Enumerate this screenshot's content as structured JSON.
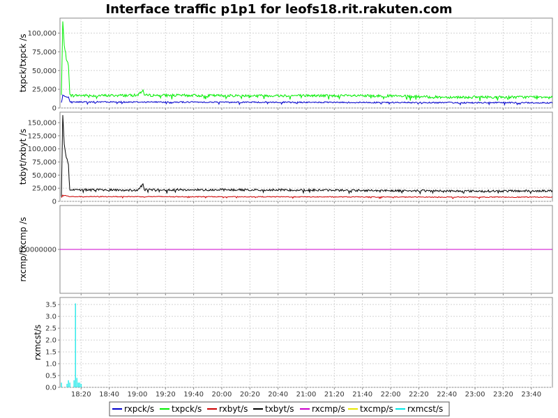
{
  "chart_data": {
    "type": "line",
    "title": "Interface traffic p1p1 for leofs18.rit.rakuten.com",
    "x_ticks": [
      "18:20",
      "18:40",
      "19:00",
      "19:20",
      "19:40",
      "20:00",
      "20:20",
      "20:40",
      "21:00",
      "21:20",
      "21:40",
      "22:00",
      "22:20",
      "22:40",
      "23:00",
      "23:20",
      "23:40"
    ],
    "x_range": [
      "18:05",
      "23:55"
    ],
    "legend": {
      "placement": "bottom",
      "items": [
        {
          "name": "rxpck/s",
          "color": "#0000cc"
        },
        {
          "name": "txpck/s",
          "color": "#00ee00"
        },
        {
          "name": "rxbyt/s",
          "color": "#cc0000"
        },
        {
          "name": "txbyt/s",
          "color": "#000000"
        },
        {
          "name": "rxcmp/s",
          "color": "#cc00cc"
        },
        {
          "name": "txcmp/s",
          "color": "#e6e600"
        },
        {
          "name": "rxmcst/s",
          "color": "#00e6e6"
        }
      ]
    },
    "panels": [
      {
        "ylabel": "txpck/txpck /s",
        "ylim": [
          0,
          120000
        ],
        "y_ticks": [
          0,
          25000,
          50000,
          75000,
          100000
        ],
        "y_tick_labels": [
          "0",
          "25,000",
          "50,000",
          "75,000",
          "100,000"
        ],
        "series": [
          {
            "name": "txpck/s",
            "color": "#00ee00",
            "points": [
              [
                "18:06",
                17000
              ],
              [
                "18:07",
                115000
              ],
              [
                "18:08",
                85000
              ],
              [
                "18:09",
                72000
              ],
              [
                "18:10",
                62000
              ],
              [
                "18:11",
                58000
              ],
              [
                "18:12",
                17000
              ],
              [
                "18:30",
                16500
              ],
              [
                "19:00",
                17000
              ],
              [
                "19:04",
                24000
              ],
              [
                "19:05",
                17000
              ],
              [
                "20:00",
                16500
              ],
              [
                "21:00",
                16500
              ],
              [
                "22:00",
                16000
              ],
              [
                "22:30",
                14500
              ],
              [
                "23:00",
                14500
              ],
              [
                "23:30",
                14500
              ],
              [
                "23:55",
                15000
              ]
            ],
            "noise": 3500
          },
          {
            "name": "rxpck/s",
            "color": "#0000cc",
            "points": [
              [
                "18:06",
                7000
              ],
              [
                "18:07",
                17000
              ],
              [
                "18:09",
                15000
              ],
              [
                "18:11",
                14000
              ],
              [
                "18:12",
                8000
              ],
              [
                "19:00",
                8000
              ],
              [
                "20:00",
                7800
              ],
              [
                "21:00",
                7500
              ],
              [
                "22:00",
                7300
              ],
              [
                "23:00",
                7000
              ],
              [
                "23:55",
                7000
              ]
            ],
            "noise": 1800
          }
        ]
      },
      {
        "ylabel": "txbyt/rxbyt /s",
        "ylim": [
          0,
          170000
        ],
        "y_ticks": [
          0,
          25000,
          50000,
          75000,
          100000,
          125000,
          150000
        ],
        "y_tick_labels": [
          "0",
          "25,000",
          "50,000",
          "75,000",
          "100,000",
          "125,000",
          "150,000"
        ],
        "series": [
          {
            "name": "txbyt/s",
            "color": "#000000",
            "points": [
              [
                "18:06",
                10000
              ],
              [
                "18:07",
                165000
              ],
              [
                "18:08",
                110000
              ],
              [
                "18:09",
                90000
              ],
              [
                "18:10",
                80000
              ],
              [
                "18:11",
                72000
              ],
              [
                "18:12",
                22000
              ],
              [
                "18:30",
                22000
              ],
              [
                "19:00",
                21000
              ],
              [
                "19:04",
                32000
              ],
              [
                "19:05",
                22000
              ],
              [
                "20:00",
                22000
              ],
              [
                "21:00",
                21500
              ],
              [
                "22:00",
                20500
              ],
              [
                "23:00",
                19500
              ],
              [
                "23:55",
                20000
              ]
            ],
            "noise": 4000
          },
          {
            "name": "rxbyt/s",
            "color": "#cc0000",
            "points": [
              [
                "18:06",
                7000
              ],
              [
                "18:07",
                12000
              ],
              [
                "18:12",
                9000
              ],
              [
                "19:00",
                9000
              ],
              [
                "20:00",
                8800
              ],
              [
                "21:00",
                8500
              ],
              [
                "22:00",
                8200
              ],
              [
                "23:00",
                8000
              ],
              [
                "23:55",
                8000
              ]
            ],
            "noise": 1500
          }
        ]
      },
      {
        "ylabel": "rxcmp/txcmp /s",
        "ylim": [
          -1,
          1
        ],
        "y_ticks": [
          0
        ],
        "y_tick_labels": [
          "0.0000000"
        ],
        "series": [
          {
            "name": "rxcmp/s",
            "color": "#cc00cc",
            "points": [
              [
                "18:05",
                0
              ],
              [
                "23:55",
                0
              ]
            ],
            "noise": 0
          }
        ]
      },
      {
        "ylabel": "rxmcst/s",
        "ylim": [
          0,
          3.8
        ],
        "y_ticks": [
          0,
          0.5,
          1.0,
          1.5,
          2.0,
          2.5,
          3.0,
          3.5
        ],
        "y_tick_labels": [
          "0.0",
          "0.5",
          "1.0",
          "1.5",
          "2.0",
          "2.5",
          "3.0",
          "3.5"
        ],
        "series": [
          {
            "name": "rxmcst/s",
            "color": "#00e6e6",
            "spikes": [
              [
                "18:06",
                0.2
              ],
              [
                "18:10",
                0.15
              ],
              [
                "18:11",
                0.3
              ],
              [
                "18:12",
                0.2
              ],
              [
                "18:15",
                0.3
              ],
              [
                "18:16",
                3.55
              ],
              [
                "18:17",
                0.4
              ],
              [
                "18:18",
                0.2
              ],
              [
                "18:19",
                0.2
              ],
              [
                "18:20",
                0.15
              ]
            ]
          }
        ]
      }
    ]
  }
}
